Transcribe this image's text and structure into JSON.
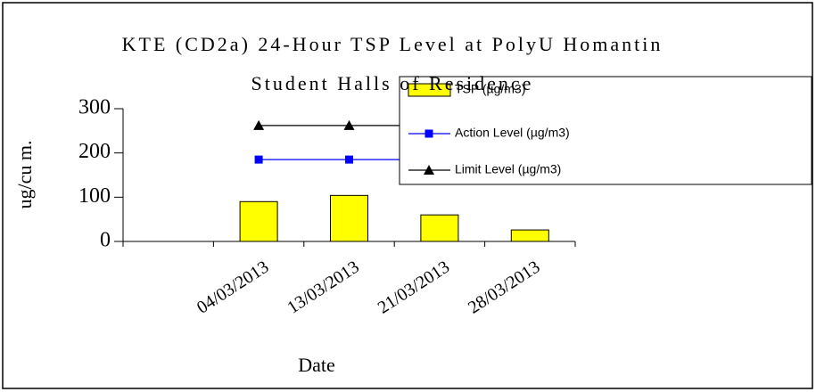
{
  "chart_data": {
    "type": "bar",
    "title": "KTE (CD2a) 24-Hour TSP Level at PolyU Homantin Student Halls of Residence",
    "x_label": "Date",
    "y_label": "ug/cu m.",
    "categories": [
      null,
      "04/03/2013",
      "13/03/2013",
      "21/03/2013",
      "28/03/2013"
    ],
    "series": [
      {
        "name": "TSP (µg/m3)",
        "type": "bar",
        "color": "#ffff00",
        "values": [
          null,
          90,
          104,
          60,
          26
        ]
      },
      {
        "name": "Action Level (µg/m3)",
        "type": "line",
        "marker": "square",
        "color": "#0000ff",
        "values": [
          null,
          185,
          185,
          185,
          185
        ]
      },
      {
        "name": "Limit Level (µg/m3)",
        "type": "line",
        "marker": "triangle",
        "color": "#000000",
        "values": [
          null,
          262,
          262,
          262,
          262
        ]
      }
    ],
    "ylim": [
      0,
      300
    ],
    "yticks": [
      0,
      100,
      200,
      300
    ],
    "grid": false,
    "legend": "right"
  }
}
